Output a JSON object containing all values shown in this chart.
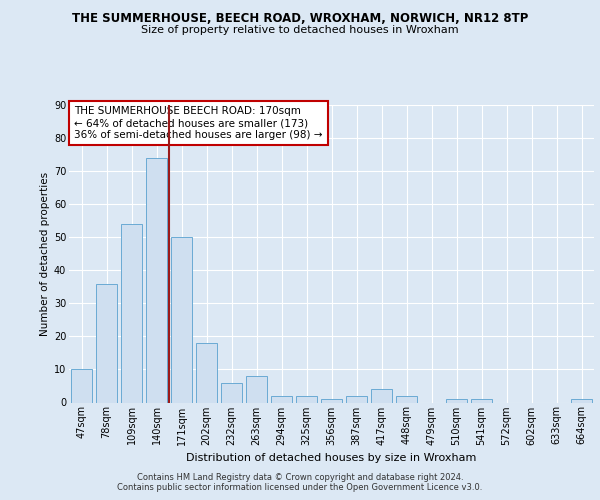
{
  "title": "THE SUMMERHOUSE, BEECH ROAD, WROXHAM, NORWICH, NR12 8TP",
  "subtitle": "Size of property relative to detached houses in Wroxham",
  "xlabel": "Distribution of detached houses by size in Wroxham",
  "ylabel": "Number of detached properties",
  "categories": [
    "47sqm",
    "78sqm",
    "109sqm",
    "140sqm",
    "171sqm",
    "202sqm",
    "232sqm",
    "263sqm",
    "294sqm",
    "325sqm",
    "356sqm",
    "387sqm",
    "417sqm",
    "448sqm",
    "479sqm",
    "510sqm",
    "541sqm",
    "572sqm",
    "602sqm",
    "633sqm",
    "664sqm"
  ],
  "values": [
    10,
    36,
    54,
    74,
    50,
    18,
    6,
    8,
    2,
    2,
    1,
    2,
    4,
    2,
    0,
    1,
    1,
    0,
    0,
    0,
    1
  ],
  "bar_color": "#cfdff0",
  "bar_edge_color": "#6aaad4",
  "highlight_bar_index": 4,
  "highlight_color": "#9b1a1a",
  "ylim": [
    0,
    90
  ],
  "yticks": [
    0,
    10,
    20,
    30,
    40,
    50,
    60,
    70,
    80,
    90
  ],
  "annotation_text": "THE SUMMERHOUSE BEECH ROAD: 170sqm\n← 64% of detached houses are smaller (173)\n36% of semi-detached houses are larger (98) →",
  "annotation_box_color": "#ffffff",
  "annotation_box_edge": "#c00000",
  "footer_line1": "Contains HM Land Registry data © Crown copyright and database right 2024.",
  "footer_line2": "Contains public sector information licensed under the Open Government Licence v3.0.",
  "background_color": "#dce8f4",
  "plot_bg_color": "#dce8f4",
  "grid_color": "#ffffff",
  "title_fontsize": 8.5,
  "subtitle_fontsize": 8,
  "tick_fontsize": 7,
  "ylabel_fontsize": 7.5,
  "xlabel_fontsize": 8,
  "annotation_fontsize": 7.5,
  "footer_fontsize": 6
}
